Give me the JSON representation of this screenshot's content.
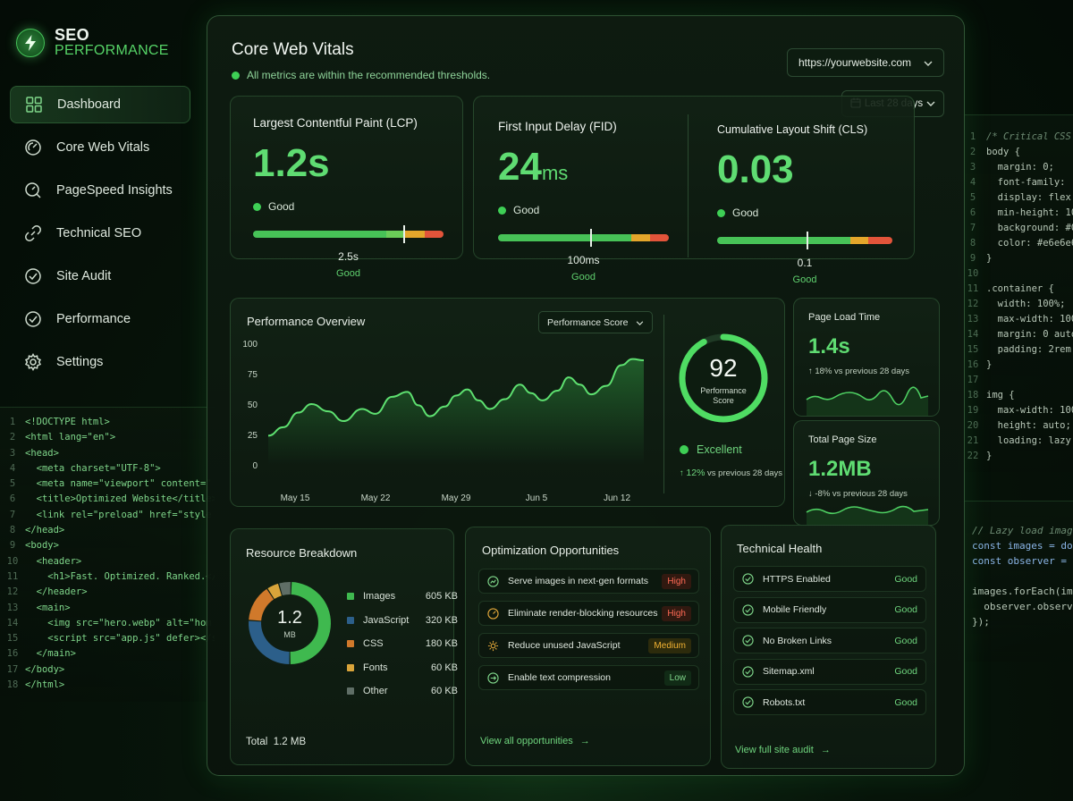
{
  "brand": {
    "line1": "SEO",
    "line2": "PERFORMANCE"
  },
  "sidebar": {
    "items": [
      {
        "label": "Dashboard",
        "icon": "grid-icon",
        "active": true
      },
      {
        "label": "Core Web Vitals",
        "icon": "gauge-icon"
      },
      {
        "label": "PageSpeed Insights",
        "icon": "search-gauge-icon"
      },
      {
        "label": "Technical SEO",
        "icon": "link-icon"
      },
      {
        "label": "Site Audit",
        "icon": "check-circle-icon"
      },
      {
        "label": "Performance",
        "icon": "check-circle-icon"
      },
      {
        "label": "Settings",
        "icon": "gear-icon"
      }
    ]
  },
  "header": {
    "title": "Core Web Vitals",
    "subtitle": "All metrics are within the recommended thresholds.",
    "url": "https://yourwebsite.com",
    "date_range": "Last 28 days"
  },
  "vitals": [
    {
      "label": "Largest Contentful Paint (LCP)",
      "value": "1.2s",
      "unit": "",
      "status": "Good",
      "marker": 0.79,
      "threshold": "2.5s",
      "threshold_status": "Good"
    },
    {
      "label": "First Input Delay (FID)",
      "value": "24",
      "unit": "ms",
      "status": "Good",
      "marker": 0.54,
      "threshold": "100ms",
      "threshold_status": "Good"
    },
    {
      "label": "Cumulative Layout Shift (CLS)",
      "value": "0.03",
      "unit": "",
      "status": "Good",
      "marker": 0.51,
      "threshold": "0.1",
      "threshold_status": "Good"
    }
  ],
  "overview": {
    "title": "Performance Overview",
    "select": "Performance Score",
    "score": "92",
    "score_label_1": "Performance",
    "score_label_2": "Score",
    "score_status": "Excellent",
    "score_change": "12%",
    "score_change_suffix": "vs previous 28 days"
  },
  "chart_data": {
    "type": "line",
    "x": [
      "May 15",
      "May 22",
      "May 29",
      "Jun 5",
      "Jun 12"
    ],
    "ylim": [
      0,
      100
    ],
    "yticks": [
      100,
      75,
      50,
      25,
      0
    ],
    "grid": false,
    "series": [
      {
        "points": [
          [
            0,
            24
          ],
          [
            0.04,
            31
          ],
          [
            0.08,
            43
          ],
          [
            0.115,
            50
          ],
          [
            0.16,
            44
          ],
          [
            0.2,
            36
          ],
          [
            0.25,
            46
          ],
          [
            0.285,
            42
          ],
          [
            0.33,
            56
          ],
          [
            0.37,
            60
          ],
          [
            0.4,
            49
          ],
          [
            0.43,
            40
          ],
          [
            0.47,
            48
          ],
          [
            0.5,
            57
          ],
          [
            0.53,
            62
          ],
          [
            0.56,
            53
          ],
          [
            0.59,
            46
          ],
          [
            0.63,
            54
          ],
          [
            0.67,
            66
          ],
          [
            0.7,
            59
          ],
          [
            0.73,
            53
          ],
          [
            0.77,
            61
          ],
          [
            0.8,
            72
          ],
          [
            0.83,
            66
          ],
          [
            0.86,
            58
          ],
          [
            0.9,
            65
          ],
          [
            0.94,
            82
          ],
          [
            0.97,
            87
          ],
          [
            1.0,
            86
          ]
        ]
      }
    ]
  },
  "page_load": {
    "title": "Page Load Time",
    "value": "1.4s",
    "change": "↑ 18% vs previous 28 days"
  },
  "page_size": {
    "title": "Total Page Size",
    "value": "1.2MB",
    "change": "↓ -8% vs previous 28 days"
  },
  "resources": {
    "title": "Resource Breakdown",
    "center_value": "1.2",
    "center_unit": "MB",
    "total_label": "Total",
    "total_value": "1.2 MB",
    "items": [
      {
        "name": "Images",
        "value": "605 KB",
        "kb": 605,
        "color": "#3fb94f"
      },
      {
        "name": "JavaScript",
        "value": "320 KB",
        "kb": 320,
        "color": "#2c5f8a"
      },
      {
        "name": "CSS",
        "value": "180 KB",
        "kb": 180,
        "color": "#d0792b"
      },
      {
        "name": "Fonts",
        "value": "60 KB",
        "kb": 60,
        "color": "#d9a43a"
      },
      {
        "name": "Other",
        "value": "60 KB",
        "kb": 60,
        "color": "#5f6e66"
      }
    ]
  },
  "opportunities": {
    "title": "Optimization Opportunities",
    "items": [
      {
        "label": "Serve images in next-gen formats",
        "priority": "High",
        "level": "high"
      },
      {
        "label": "Eliminate render-blocking resources",
        "priority": "High",
        "level": "high"
      },
      {
        "label": "Reduce unused JavaScript",
        "priority": "Medium",
        "level": "med"
      },
      {
        "label": "Enable text compression",
        "priority": "Low",
        "level": "low"
      }
    ],
    "link": "View all opportunities"
  },
  "health": {
    "title": "Technical Health",
    "items": [
      {
        "label": "HTTPS Enabled",
        "status": "Good"
      },
      {
        "label": "Mobile Friendly",
        "status": "Good"
      },
      {
        "label": "No Broken Links",
        "status": "Good"
      },
      {
        "label": "Sitemap.xml",
        "status": "Good"
      },
      {
        "label": "Robots.txt",
        "status": "Good"
      }
    ],
    "link": "View full site audit"
  },
  "code_left": [
    "<!DOCTYPE html>",
    "<html lang=\"en\">",
    "<head>",
    "  <meta charset=\"UTF-8\">",
    "  <meta name=\"viewport\" content=\"",
    "  <title>Optimized Website</title>",
    "  <link rel=\"preload\" href=\"style",
    "</head>",
    "<body>",
    "  <header>",
    "    <h1>Fast. Optimized. Ranked.</h1",
    "  </header>",
    "  <main>",
    "    <img src=\"hero.webp\" alt=\"hom",
    "    <script src=\"app.js\" defer></s",
    "  </main>",
    "</body>",
    "</html>"
  ],
  "code_right": [
    "/* Critical CSS",
    "body {",
    "  margin: 0;",
    "  font-family: '",
    "  display: flex;",
    "  min-height: 10",
    "  background: #0",
    "  color: #e6e6e6",
    "}",
    "",
    ".container {",
    "  width: 100%;",
    "  max-width: 100",
    "  margin: 0 auto",
    "  padding: 2rem;",
    "}",
    "",
    "img {",
    "  max-width: 100%",
    "  height: auto;",
    "  loading: lazy;",
    "}"
  ],
  "code_right2": [
    "// Lazy load image",
    "const images = doc",
    "const observer = (",
    "",
    "images.forEach(img",
    "  observer.observe(i",
    "});"
  ]
}
